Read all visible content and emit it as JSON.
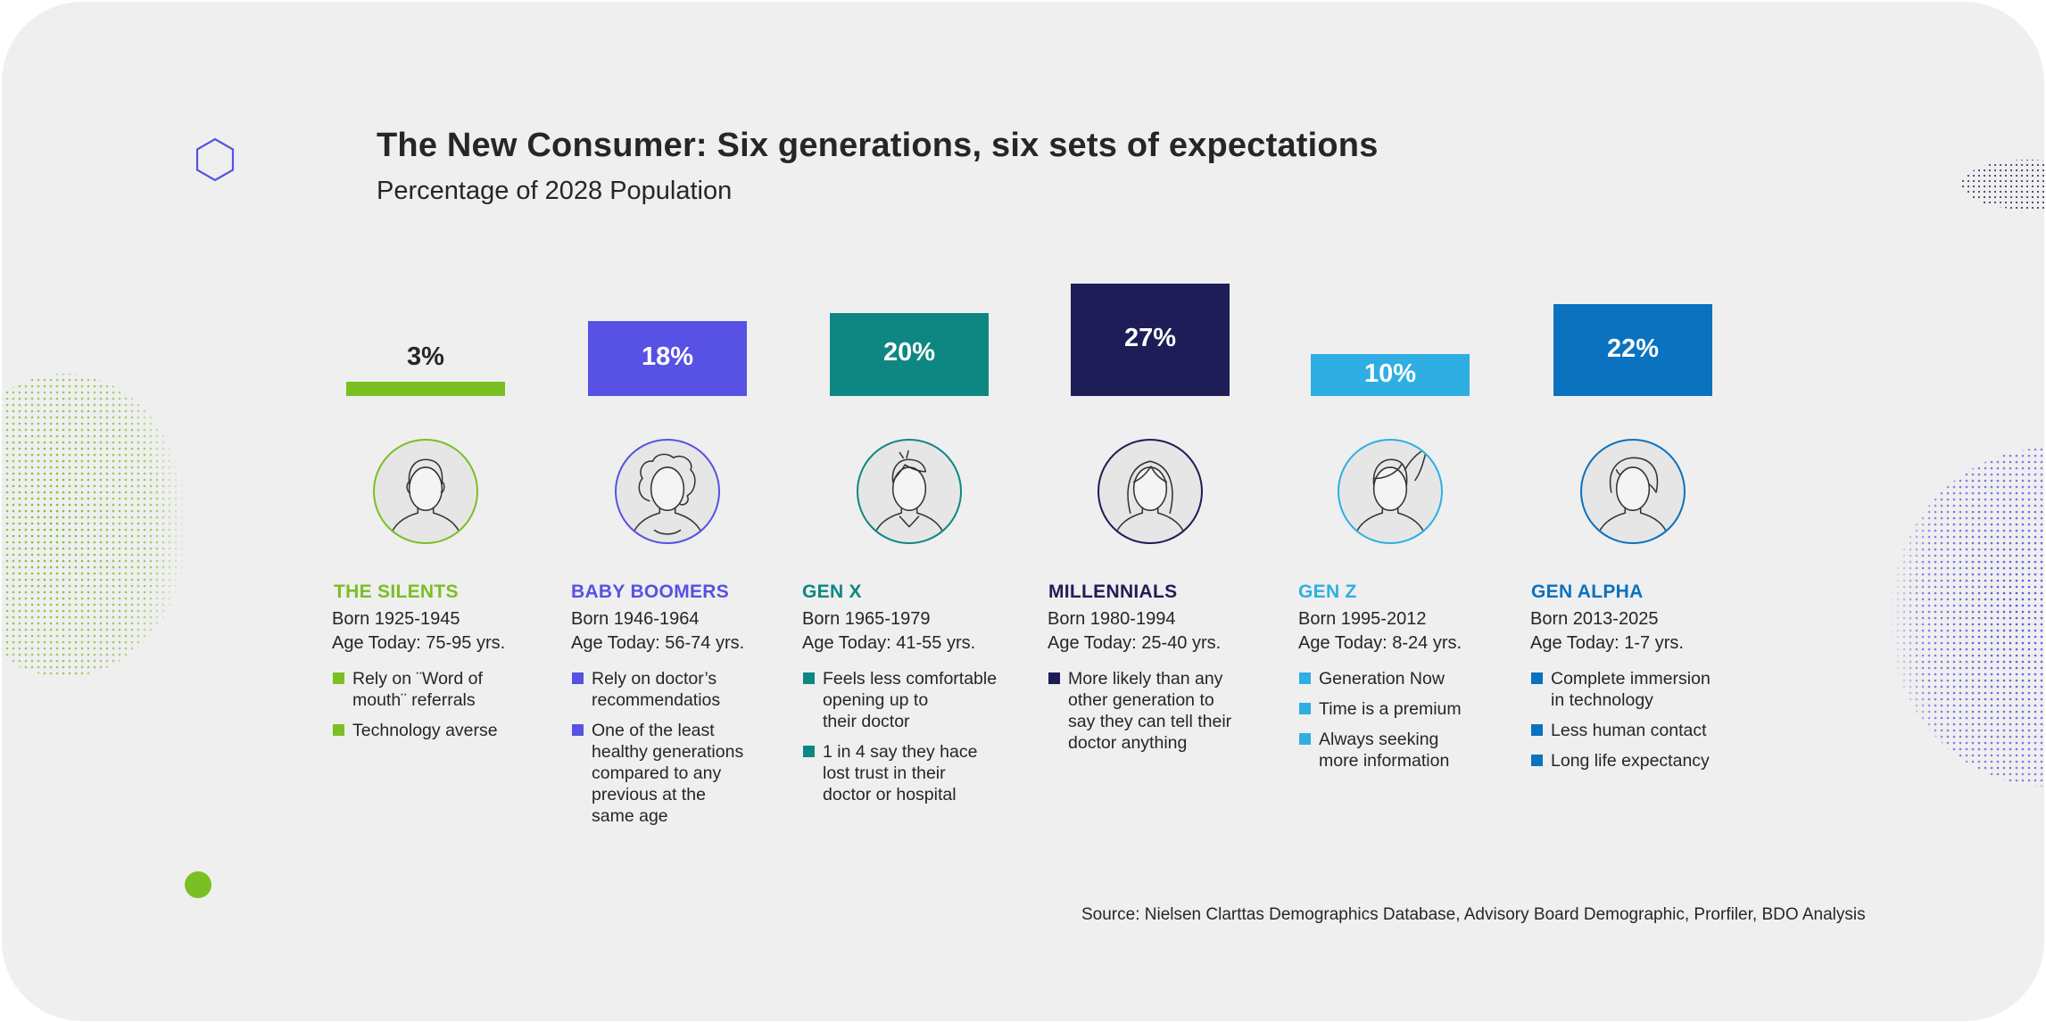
{
  "header": {
    "title": "The New Consumer: Six generations, six sets of expectations",
    "subtitle": "Percentage of 2028 Population"
  },
  "source": "Source: Nielsen Clarttas Demographics Database, Advisory Board Demographic, Prorfiler, BDO Analysis",
  "colors": {
    "background": "#efefef",
    "silents": "#7abf24",
    "boomers": "#5751e4",
    "genx": "#0e8783",
    "millennials": "#1f1d57",
    "genz": "#2faee3",
    "genalpha": "#0a72be"
  },
  "chart_data": {
    "type": "bar",
    "title": "The New Consumer: Six generations, six sets of expectations",
    "subtitle": "Percentage of 2028 Population",
    "categories": [
      "THE SILENTS",
      "BABY BOOMERS",
      "GEN X",
      "MILLENNIALS",
      "GEN Z",
      "GEN ALPHA"
    ],
    "values": [
      3,
      18,
      20,
      27,
      10,
      22
    ],
    "value_labels": [
      "3%",
      "18%",
      "20%",
      "27%",
      "10%",
      "22%"
    ],
    "colors": [
      "#7abf24",
      "#5751e4",
      "#0e8783",
      "#1f1d57",
      "#2faee3",
      "#0a72be"
    ],
    "ylim": [
      0,
      27
    ],
    "unit": "%"
  },
  "generations": [
    {
      "name": "THE SILENTS",
      "born": "Born 1925-1945",
      "age": "Age Today: 75-95 yrs.",
      "avatar_icon": "elderly-man-icon",
      "bullets": [
        "Rely on ¨Word of\nmouth¨ referrals",
        "Technology averse"
      ]
    },
    {
      "name": "BABY BOOMERS",
      "born": "Born 1946-1964",
      "age": "Age Today: 56-74 yrs.",
      "avatar_icon": "curly-hair-woman-icon",
      "bullets": [
        "Rely on doctor’s\nrecommendatios",
        "One of the least\nhealthy generations\ncompared to any\nprevious at the\nsame age"
      ]
    },
    {
      "name": "GEN X",
      "born": "Born 1965-1979",
      "age": "Age Today: 41-55 yrs.",
      "avatar_icon": "man-collared-shirt-icon",
      "bullets": [
        "Feels less comfortable\nopening up to\ntheir doctor",
        "1 in 4 say they hace\nlost trust in their\ndoctor or hospital"
      ]
    },
    {
      "name": "MILLENNIALS",
      "born": "Born 1980-1994",
      "age": "Age Today: 25-40 yrs.",
      "avatar_icon": "long-hair-woman-icon",
      "bullets": [
        "More likely than any\nother generation to\nsay they can tell their\ndoctor anything"
      ]
    },
    {
      "name": "GEN Z",
      "born": "Born 1995-2012",
      "age": "Age Today: 8-24 yrs.",
      "avatar_icon": "ponytail-girl-icon",
      "bullets": [
        "Generation Now",
        "Time is a premium",
        "Always seeking\nmore information"
      ]
    },
    {
      "name": "GEN ALPHA",
      "born": "Born 2013-2025",
      "age": "Age Today: 1-7 yrs.",
      "avatar_icon": "child-icon",
      "bullets": [
        "Complete immersion\nin technology",
        "Less human contact",
        "Long life expectancy"
      ]
    }
  ]
}
